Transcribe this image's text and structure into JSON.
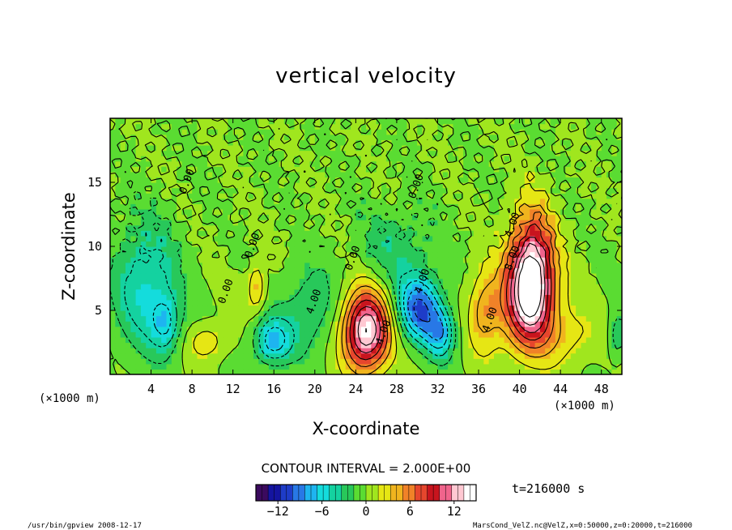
{
  "chart_data": {
    "type": "heatmap",
    "title": "vertical velocity",
    "xlabel": "X-coordinate",
    "ylabel": "Z-coordinate",
    "x_unit": "(×1000 m)",
    "y_unit": "(×1000 m)",
    "xlim": [
      0,
      50
    ],
    "ylim": [
      0,
      20
    ],
    "x_ticks": [
      4,
      8,
      12,
      16,
      20,
      24,
      28,
      32,
      36,
      40,
      44,
      48
    ],
    "y_ticks": [
      5,
      10,
      15
    ],
    "contour_interval": "CONTOUR INTERVAL = 2.000E+00",
    "contour_labels": [
      {
        "x": 20.2,
        "z": 5.6,
        "text": "4.00"
      },
      {
        "x": 27.0,
        "z": 3.2,
        "text": "4.00"
      },
      {
        "x": 30.8,
        "z": 7.2,
        "text": "4.00"
      },
      {
        "x": 39.6,
        "z": 11.6,
        "text": "4.00"
      },
      {
        "x": 39.6,
        "z": 9.0,
        "text": "8.00"
      },
      {
        "x": 37.4,
        "z": 4.2,
        "text": "4.00"
      },
      {
        "x": 11.6,
        "z": 6.4,
        "text": "0.00"
      },
      {
        "x": 14.2,
        "z": 10.0,
        "text": "0.00"
      },
      {
        "x": 24.0,
        "z": 9.0,
        "text": "0.00"
      },
      {
        "x": 30.2,
        "z": 14.6,
        "text": "0.00"
      },
      {
        "x": 7.8,
        "z": 15.0,
        "text": "0.00"
      }
    ],
    "features": [
      {
        "x": 25.0,
        "z": 3.4,
        "amp": 14.5,
        "sx": 1.6,
        "sz": 2.2
      },
      {
        "x": 41.2,
        "z": 8.0,
        "amp": 14.0,
        "sx": 1.5,
        "sz": 3.2
      },
      {
        "x": 40.6,
        "z": 5.2,
        "amp": 6.0,
        "sx": 2.2,
        "sz": 2.6
      },
      {
        "x": 36.5,
        "z": 5.0,
        "amp": 4.5,
        "sx": 1.1,
        "sz": 2.2
      },
      {
        "x": 30.2,
        "z": 5.2,
        "amp": -10.0,
        "sx": 1.5,
        "sz": 1.8
      },
      {
        "x": 32.3,
        "z": 3.2,
        "amp": -6.5,
        "sx": 1.0,
        "sz": 1.4
      },
      {
        "x": 15.8,
        "z": 2.6,
        "amp": -7.0,
        "sx": 1.3,
        "sz": 1.3
      },
      {
        "x": 19.5,
        "z": 5.0,
        "amp": -3.5,
        "sx": 2.0,
        "sz": 2.5
      },
      {
        "x": 3.5,
        "z": 7.0,
        "amp": -5.5,
        "sx": 2.2,
        "sz": 3.5
      },
      {
        "x": 5.5,
        "z": 4.0,
        "amp": -5.0,
        "sx": 1.0,
        "sz": 1.5
      },
      {
        "x": 14.3,
        "z": 6.8,
        "amp": 4.5,
        "sx": 0.6,
        "sz": 1.3
      },
      {
        "x": 9.5,
        "z": 2.6,
        "amp": 3.5,
        "sx": 1.3,
        "sz": 1.0
      },
      {
        "x": 27.8,
        "z": 10.0,
        "amp": -3.0,
        "sx": 2.5,
        "sz": 2.2
      },
      {
        "x": 49.6,
        "z": 3.0,
        "amp": -4.0,
        "sx": 0.6,
        "sz": 1.2
      },
      {
        "x": 45.0,
        "z": 3.0,
        "amp": 2.5,
        "sx": 2.0,
        "sz": 1.5
      }
    ],
    "colorbar": {
      "vmin": -15,
      "vmax": 15,
      "ticks": [
        -12,
        -6,
        0,
        6,
        12
      ],
      "colors": [
        "#3b0a5e",
        "#1414a0",
        "#1e3cc8",
        "#2878e6",
        "#1eb4f0",
        "#14dcdc",
        "#14d2a0",
        "#28c85a",
        "#5adc32",
        "#a0e61e",
        "#e6e614",
        "#f0b41e",
        "#f08228",
        "#e6462d",
        "#c8141e",
        "#f0648c",
        "#ffc8d2",
        "#ffffff"
      ]
    },
    "time_label": "t=216000  s"
  },
  "footer": {
    "left": "/usr/bin/gpview   2008-12-17",
    "right": "MarsCond_VelZ.nc@VelZ,x=0:50000,z=0:20000,t=216000"
  }
}
